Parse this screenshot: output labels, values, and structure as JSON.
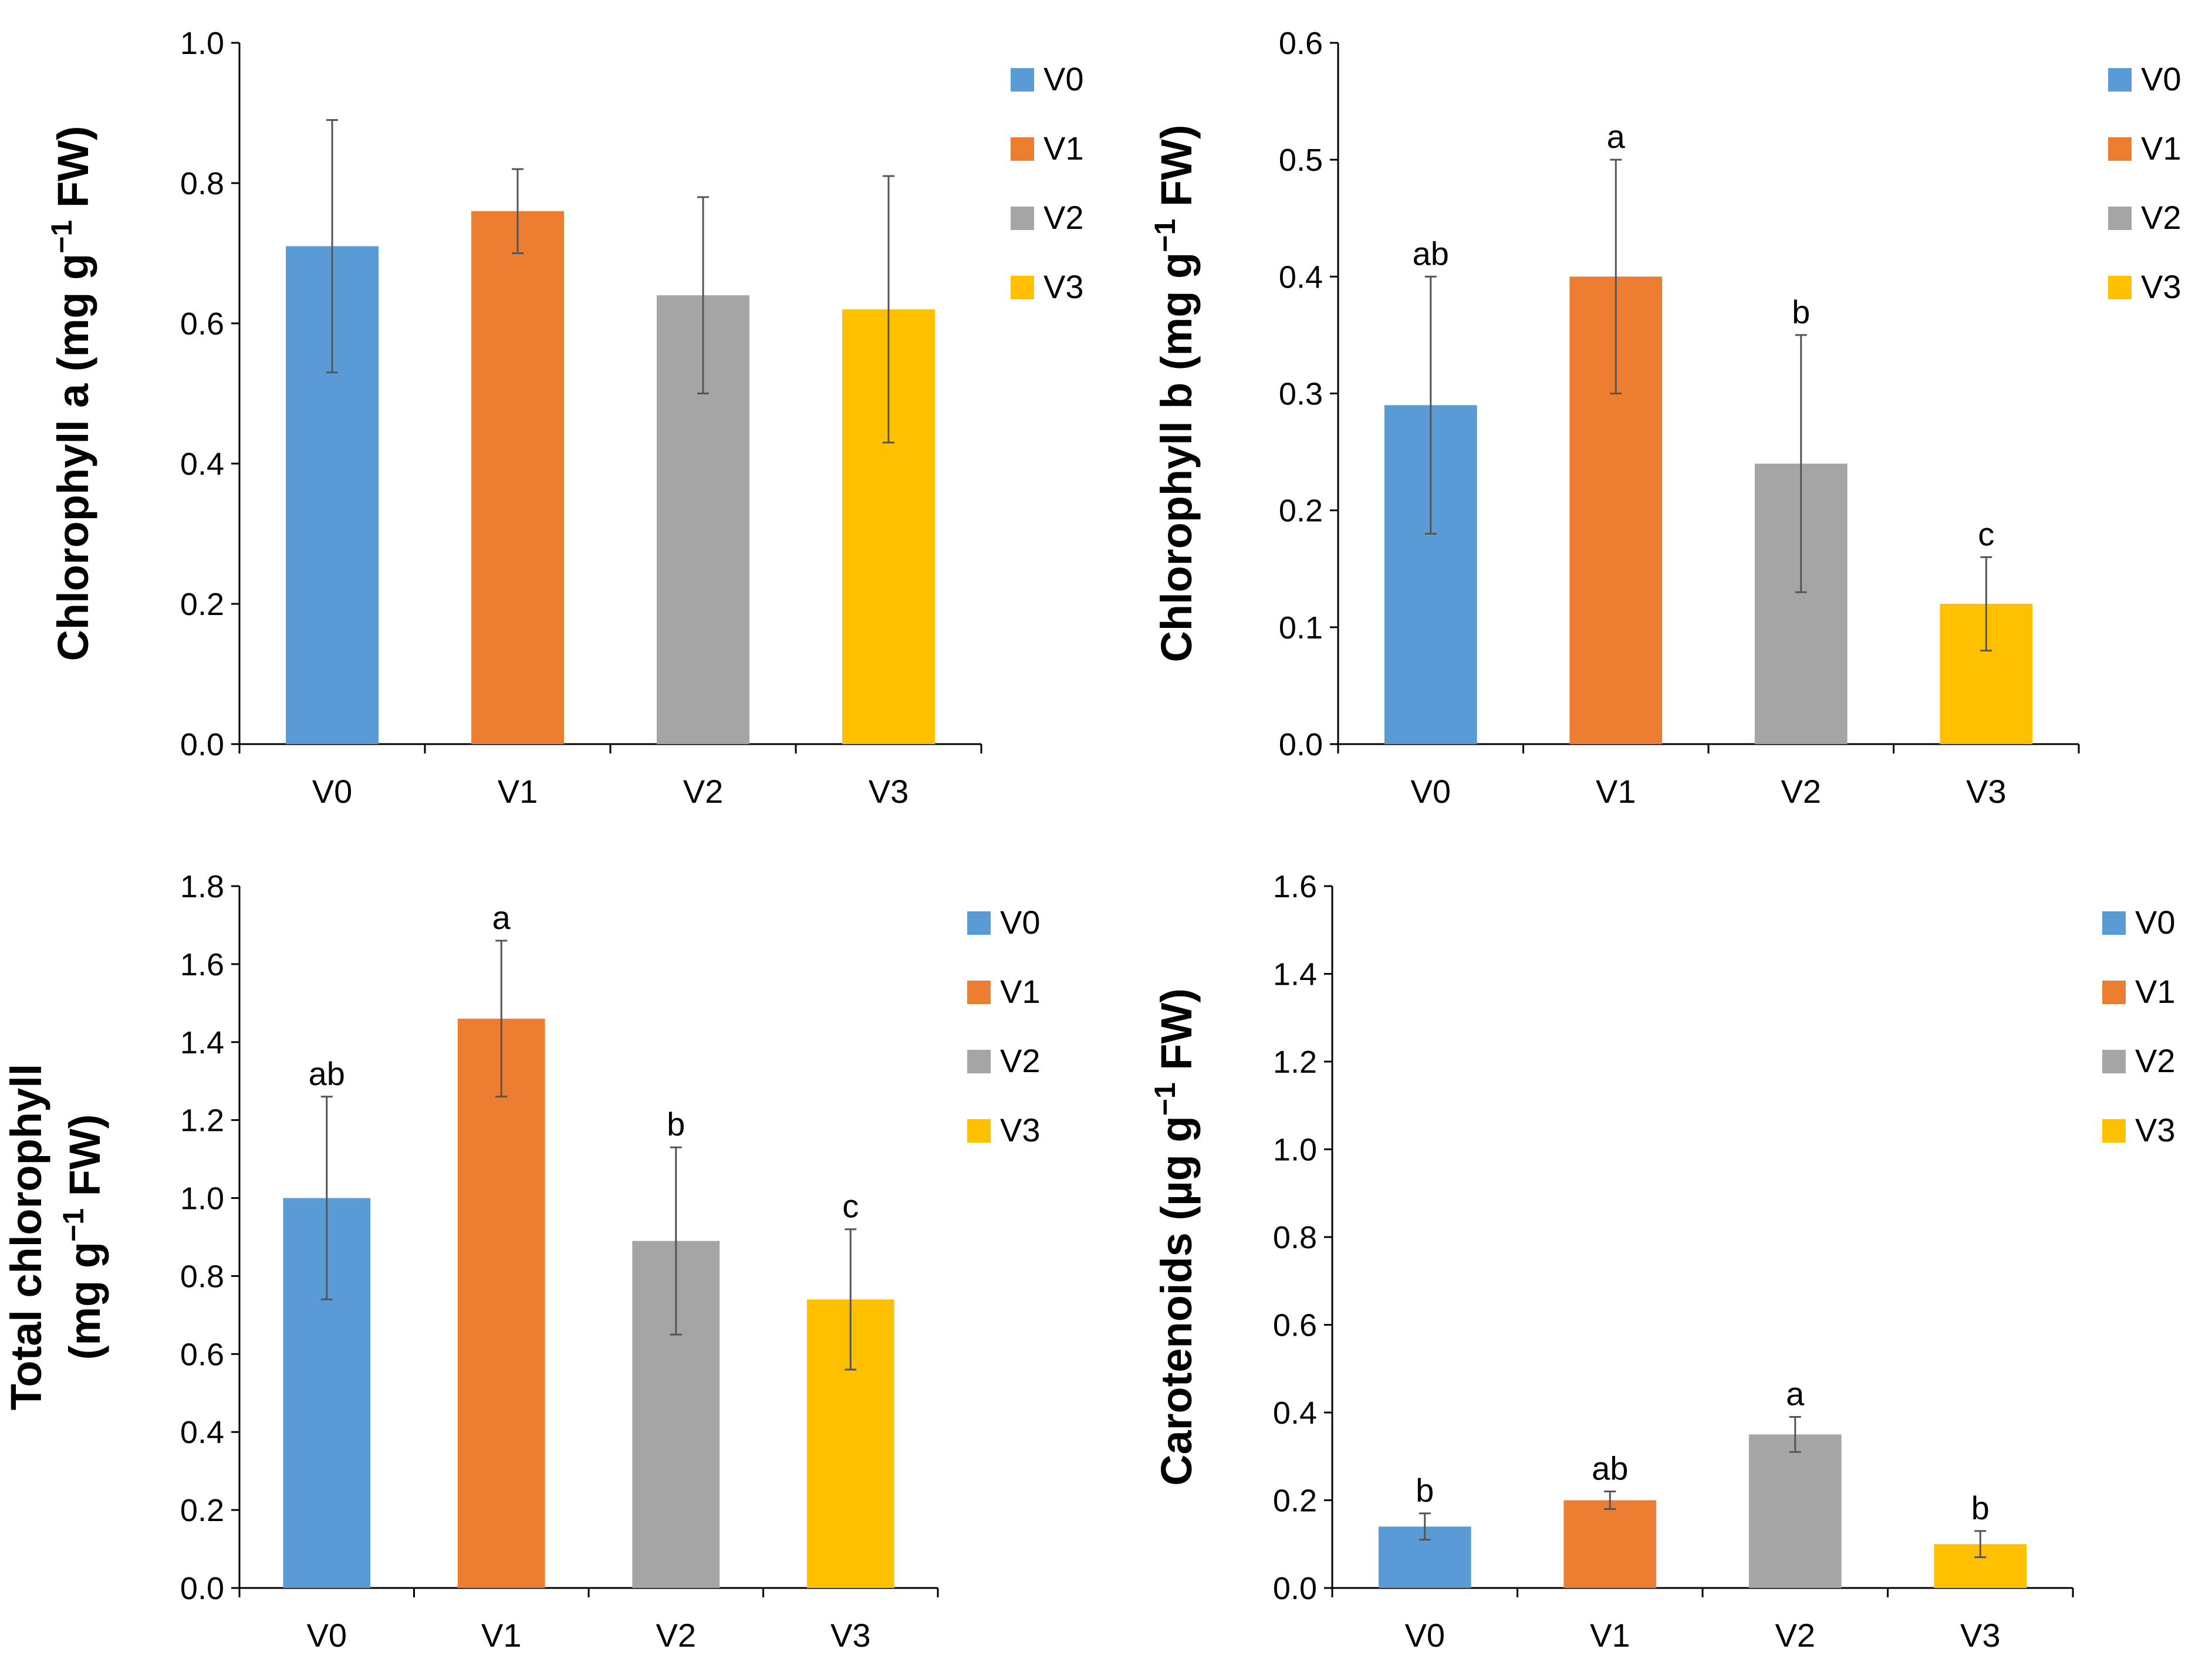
{
  "chart_data": [
    {
      "type": "bar",
      "categories": [
        "V0",
        "V1",
        "V2",
        "V3"
      ],
      "values": [
        0.71,
        0.76,
        0.64,
        0.62
      ],
      "errors": [
        0.18,
        0.06,
        0.14,
        0.19
      ],
      "letters": [
        "",
        "",
        "",
        ""
      ],
      "colors": [
        "#5B9BD5",
        "#ED7D31",
        "#A5A5A5",
        "#FFC000"
      ],
      "ylim": [
        0,
        1.0
      ],
      "yticks": [
        "0.0",
        "0.2",
        "0.4",
        "0.6",
        "0.8",
        "1.0"
      ],
      "ylabel_lines": [
        [
          "Chlorophyll a (mg g",
          "−1",
          " FW)"
        ]
      ],
      "legend": [
        "V0",
        "V1",
        "V2",
        "V3"
      ]
    },
    {
      "type": "bar",
      "categories": [
        "V0",
        "V1",
        "V2",
        "V3"
      ],
      "values": [
        0.29,
        0.4,
        0.24,
        0.12
      ],
      "errors": [
        0.11,
        0.1,
        0.11,
        0.04
      ],
      "letters": [
        "ab",
        "a",
        "b",
        "c"
      ],
      "colors": [
        "#5B9BD5",
        "#ED7D31",
        "#A5A5A5",
        "#FFC000"
      ],
      "ylim": [
        0,
        0.6
      ],
      "yticks": [
        "0.0",
        "0.1",
        "0.2",
        "0.3",
        "0.4",
        "0.5",
        "0.6"
      ],
      "ylabel_lines": [
        [
          "Chlorophyll b (mg g",
          "−1",
          " FW)"
        ]
      ],
      "legend": [
        "V0",
        "V1",
        "V2",
        "V3"
      ]
    },
    {
      "type": "bar",
      "categories": [
        "V0",
        "V1",
        "V2",
        "V3"
      ],
      "values": [
        1.0,
        1.46,
        0.89,
        0.74
      ],
      "errors": [
        0.26,
        0.2,
        0.24,
        0.18
      ],
      "letters": [
        "ab",
        "a",
        "b",
        "c"
      ],
      "colors": [
        "#5B9BD5",
        "#ED7D31",
        "#A5A5A5",
        "#FFC000"
      ],
      "ylim": [
        0,
        1.8
      ],
      "yticks": [
        "0.0",
        "0.2",
        "0.4",
        "0.6",
        "0.8",
        "1.0",
        "1.2",
        "1.4",
        "1.6",
        "1.8"
      ],
      "ylabel_lines": [
        [
          "Total chlorophyll"
        ],
        [
          "(mg g",
          "−1",
          " FW)"
        ]
      ],
      "legend": [
        "V0",
        "V1",
        "V2",
        "V3"
      ]
    },
    {
      "type": "bar",
      "categories": [
        "V0",
        "V1",
        "V2",
        "V3"
      ],
      "values": [
        0.14,
        0.2,
        0.35,
        0.1
      ],
      "errors": [
        0.03,
        0.02,
        0.04,
        0.03
      ],
      "letters": [
        "b",
        "ab",
        "a",
        "b"
      ],
      "colors": [
        "#5B9BD5",
        "#ED7D31",
        "#A5A5A5",
        "#FFC000"
      ],
      "ylim": [
        0,
        1.6
      ],
      "yticks": [
        "0.0",
        "0.2",
        "0.4",
        "0.6",
        "0.8",
        "1.0",
        "1.2",
        "1.4",
        "1.6"
      ],
      "ylabel_lines": [
        [
          "Carotenoids (µg g",
          "−1",
          " FW)"
        ]
      ],
      "legend": [
        "V0",
        "V1",
        "V2",
        "V3"
      ]
    }
  ]
}
